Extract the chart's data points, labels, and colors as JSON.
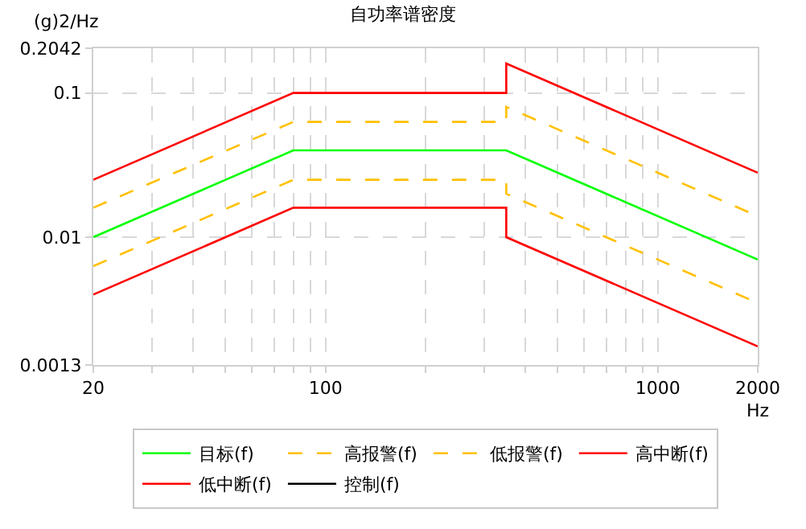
{
  "chart_data": {
    "type": "line",
    "title": "自功率谱密度",
    "xlabel": "Hz",
    "ylabel": "(g)2/Hz",
    "log": "xy",
    "grid": true,
    "legend": "bottom",
    "xlim": [
      20,
      2000
    ],
    "ylim": [
      0.0013,
      0.2042
    ],
    "xticks": [
      20,
      {
        "value": 30,
        "label": null
      },
      {
        "value": 40,
        "label": null
      },
      {
        "value": 50,
        "label": null
      },
      {
        "value": 60,
        "label": null
      },
      {
        "value": 70,
        "label": null
      },
      {
        "value": 80,
        "label": null
      },
      {
        "value": 90,
        "label": null
      },
      100,
      {
        "value": 200,
        "label": null
      },
      {
        "value": 300,
        "label": null
      },
      {
        "value": 400,
        "label": null
      },
      {
        "value": 500,
        "label": null
      },
      {
        "value": 600,
        "label": null
      },
      {
        "value": 700,
        "label": null
      },
      {
        "value": 800,
        "label": null
      },
      {
        "value": 900,
        "label": null
      },
      1000,
      2000
    ],
    "yticks": [
      0.0013,
      0.01,
      0.1,
      0.2042
    ],
    "series": [
      {
        "name": "目标(f)",
        "color": "#00ff00",
        "line_style": "solid",
        "x": [
          20,
          80,
          350,
          2000
        ],
        "values": [
          0.01,
          0.04,
          0.04,
          0.007
        ]
      },
      {
        "name": "高报警(f)",
        "color": "#ffc000",
        "line_style": "dashed",
        "x": [
          20,
          80,
          350,
          350,
          2000
        ],
        "values": [
          0.016,
          0.063,
          0.063,
          0.08,
          0.014
        ]
      },
      {
        "name": "低报警(f)",
        "color": "#ffc000",
        "line_style": "dashed",
        "x": [
          20,
          80,
          350,
          350,
          2000
        ],
        "values": [
          0.0063,
          0.025,
          0.025,
          0.02,
          0.0035
        ]
      },
      {
        "name": "高中断(f)",
        "color": "#ff0000",
        "line_style": "solid",
        "x": [
          20,
          80,
          350,
          350,
          2000
        ],
        "values": [
          0.025,
          0.1,
          0.1,
          0.16,
          0.028
        ]
      },
      {
        "name": "低中断(f)",
        "color": "#ff0000",
        "line_style": "solid",
        "x": [
          20,
          80,
          350,
          350,
          2000
        ],
        "values": [
          0.004,
          0.016,
          0.016,
          0.01,
          0.00175
        ]
      },
      {
        "name": "控制(f)",
        "color": "#000000",
        "line_style": "solid"
      }
    ]
  }
}
